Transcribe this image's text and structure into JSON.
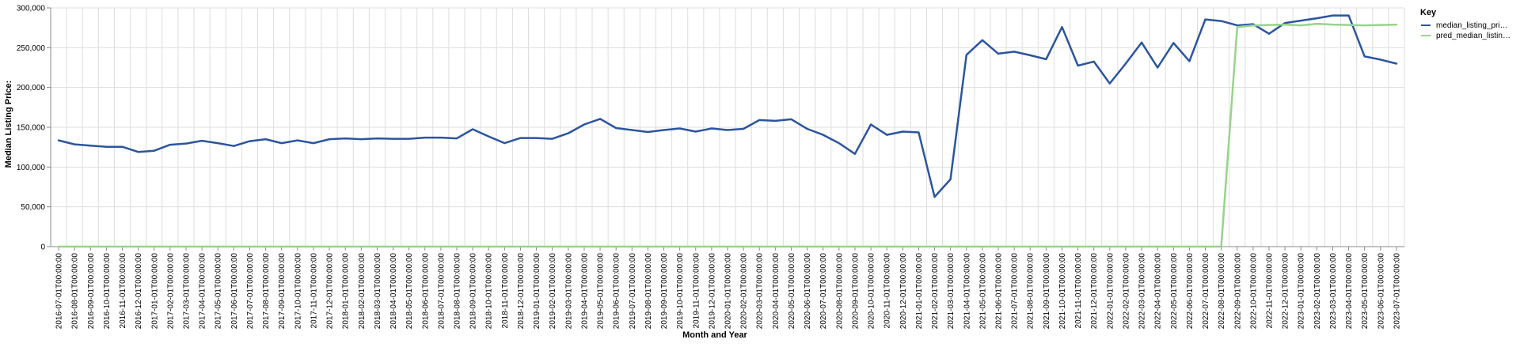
{
  "chart_data": {
    "type": "line",
    "xlabel": "Month and Year",
    "ylabel": "Median Listing Price:",
    "ylim": [
      0,
      300000
    ],
    "y_ticks": [
      0,
      50000,
      100000,
      150000,
      200000,
      250000,
      300000
    ],
    "y_tick_labels": [
      "0",
      "50,000",
      "100,000",
      "150,000",
      "200,000",
      "250,000",
      "300,000"
    ],
    "grid": true,
    "legend": {
      "title": "Key",
      "placement": "top-right",
      "entries": [
        "median_listing_pri…",
        "pred_median_listin…"
      ]
    },
    "x": [
      "2016-07-01T00:00:00",
      "2016-08-01T00:00:00",
      "2016-09-01T00:00:00",
      "2016-10-01T00:00:00",
      "2016-11-01T00:00:00",
      "2016-12-01T00:00:00",
      "2017-01-01T00:00:00",
      "2017-02-01T00:00:00",
      "2017-03-01T00:00:00",
      "2017-04-01T00:00:00",
      "2017-05-01T00:00:00",
      "2017-06-01T00:00:00",
      "2017-07-01T00:00:00",
      "2017-08-01T00:00:00",
      "2017-09-01T00:00:00",
      "2017-10-01T00:00:00",
      "2017-11-01T00:00:00",
      "2017-12-01T00:00:00",
      "2018-01-01T00:00:00",
      "2018-02-01T00:00:00",
      "2018-03-01T00:00:00",
      "2018-04-01T00:00:00",
      "2018-05-01T00:00:00",
      "2018-06-01T00:00:00",
      "2018-07-01T00:00:00",
      "2018-08-01T00:00:00",
      "2018-09-01T00:00:00",
      "2018-10-01T00:00:00",
      "2018-11-01T00:00:00",
      "2018-12-01T00:00:00",
      "2019-01-01T00:00:00",
      "2019-02-01T00:00:00",
      "2019-03-01T00:00:00",
      "2019-04-01T00:00:00",
      "2019-05-01T00:00:00",
      "2019-06-01T00:00:00",
      "2019-07-01T00:00:00",
      "2019-08-01T00:00:00",
      "2019-09-01T00:00:00",
      "2019-10-01T00:00:00",
      "2019-11-01T00:00:00",
      "2019-12-01T00:00:00",
      "2020-01-01T00:00:00",
      "2020-02-01T00:00:00",
      "2020-03-01T00:00:00",
      "2020-04-01T00:00:00",
      "2020-05-01T00:00:00",
      "2020-06-01T00:00:00",
      "2020-07-01T00:00:00",
      "2020-08-01T00:00:00",
      "2020-09-01T00:00:00",
      "2020-10-01T00:00:00",
      "2020-11-01T00:00:00",
      "2020-12-01T00:00:00",
      "2021-01-01T00:00:00",
      "2021-02-01T00:00:00",
      "2021-03-01T00:00:00",
      "2021-04-01T00:00:00",
      "2021-05-01T00:00:00",
      "2021-06-01T00:00:00",
      "2021-07-01T00:00:00",
      "2021-08-01T00:00:00",
      "2021-09-01T00:00:00",
      "2021-10-01T00:00:00",
      "2021-11-01T00:00:00",
      "2021-12-01T00:00:00",
      "2022-01-01T00:00:00",
      "2022-02-01T00:00:00",
      "2022-03-01T00:00:00",
      "2022-04-01T00:00:00",
      "2022-05-01T00:00:00",
      "2022-06-01T00:00:00",
      "2022-07-01T00:00:00",
      "2022-08-01T00:00:00",
      "2022-09-01T00:00:00",
      "2022-10-01T00:00:00",
      "2022-11-01T00:00:00",
      "2022-12-01T00:00:00",
      "2023-01-01T00:00:00",
      "2023-02-01T00:00:00",
      "2023-03-01T00:00:00",
      "2023-04-01T00:00:00",
      "2023-05-01T00:00:00",
      "2023-06-01T00:00:00",
      "2023-07-01T00:00:00"
    ],
    "series": [
      {
        "name": "median_listing_pri…",
        "color": "#2b559e",
        "values": [
          133500,
          128500,
          127000,
          125500,
          125500,
          119000,
          120500,
          128000,
          129500,
          133000,
          130000,
          126500,
          132500,
          135000,
          130000,
          133500,
          130000,
          135000,
          136000,
          135000,
          136000,
          135500,
          135500,
          137000,
          137000,
          136000,
          147500,
          138500,
          130000,
          136500,
          136500,
          135500,
          142500,
          153500,
          160500,
          149000,
          146500,
          144000,
          146500,
          148500,
          144500,
          148500,
          146500,
          148000,
          159000,
          158000,
          160000,
          148000,
          140500,
          130000,
          116500,
          153500,
          140500,
          144500,
          143500,
          62500,
          84500,
          241000,
          259500,
          242500,
          245000,
          240500,
          235500,
          276000,
          227500,
          232500,
          205000,
          230000,
          256500,
          225000,
          256000,
          233000,
          285500,
          283500,
          278000,
          279500,
          267500,
          281000,
          284000,
          287000,
          290500,
          290500,
          239000,
          235000,
          230000
        ]
      },
      {
        "name": "pred_median_listin…",
        "color": "#98d38c",
        "values": [
          0,
          0,
          0,
          0,
          0,
          0,
          0,
          0,
          0,
          0,
          0,
          0,
          0,
          0,
          0,
          0,
          0,
          0,
          0,
          0,
          0,
          0,
          0,
          0,
          0,
          0,
          0,
          0,
          0,
          0,
          0,
          0,
          0,
          0,
          0,
          0,
          0,
          0,
          0,
          0,
          0,
          0,
          0,
          0,
          0,
          0,
          0,
          0,
          0,
          0,
          0,
          0,
          0,
          0,
          0,
          0,
          0,
          0,
          0,
          0,
          0,
          0,
          0,
          0,
          0,
          0,
          0,
          0,
          0,
          0,
          0,
          0,
          0,
          0,
          276000,
          278000,
          278500,
          279000,
          278000,
          280000,
          279000,
          278500,
          278000,
          278500,
          279000
        ]
      }
    ]
  }
}
